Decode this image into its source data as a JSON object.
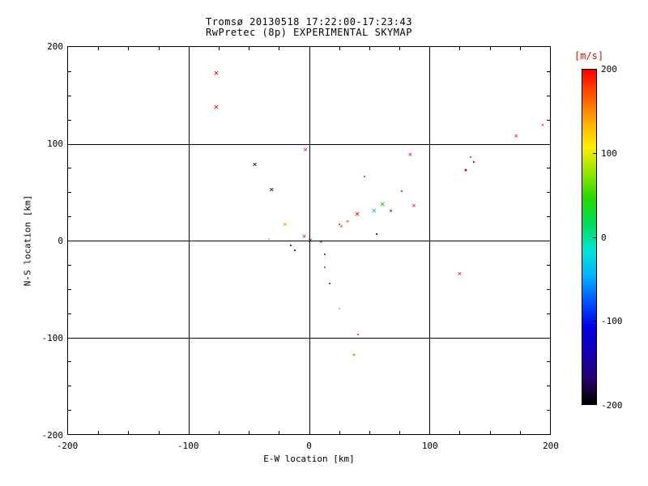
{
  "title": {
    "line1": "Tromsø 20130518 17:22:00-17:23:43",
    "line2": "RwPretec (8p) EXPERIMENTAL SKYMAP"
  },
  "axes": {
    "xlabel": "E-W location [km]",
    "ylabel": "N-S location [km]",
    "x_ticks": [
      "-200",
      "-100",
      "0",
      "100",
      "200"
    ],
    "y_ticks": [
      "200",
      "100",
      "0",
      "-100",
      "-200"
    ]
  },
  "colorbar": {
    "label": "[m/s]",
    "label_color": "#cc1100",
    "ticks": [
      "200",
      "100",
      "0",
      "-100",
      "-200"
    ],
    "min": -200,
    "max": 200,
    "gradient_stops": [
      "#000000",
      "#26006e",
      "#1500b4",
      "#0000e6",
      "#0055ff",
      "#00b4ff",
      "#00e6d2",
      "#00dc5a",
      "#28d800",
      "#96e600",
      "#ffee00",
      "#ffaa00",
      "#ff5500",
      "#ff0000"
    ]
  },
  "chart_data": {
    "type": "scatter",
    "title": "Tromsø 20130518 17:22:00-17:23:43 / RwPretec (8p) EXPERIMENTAL SKYMAP",
    "xlabel": "E-W location [km]",
    "ylabel": "N-S location [km]",
    "xlim": [
      -200,
      200
    ],
    "ylim": [
      -200,
      200
    ],
    "grid": true,
    "color_scale": {
      "label": "[m/s]",
      "min": -200,
      "max": 200,
      "type": "rainbow"
    },
    "points": [
      {
        "x": -77,
        "y": 173,
        "v": 190,
        "color": "#ff0000",
        "marker": "x",
        "size": 11
      },
      {
        "x": -77,
        "y": 138,
        "v": 190,
        "color": "#ff0000",
        "marker": "x",
        "size": 11
      },
      {
        "x": -45,
        "y": 78,
        "v": -190,
        "color": "#000000",
        "marker": "x",
        "size": 10
      },
      {
        "x": -31,
        "y": 52,
        "v": -190,
        "color": "#000000",
        "marker": "x",
        "size": 10
      },
      {
        "x": -3,
        "y": 93,
        "v": 190,
        "color": "#ff0000",
        "marker": "x",
        "size": 9
      },
      {
        "x": -20,
        "y": 16,
        "v": 150,
        "color": "#ff9900",
        "marker": "x",
        "size": 10
      },
      {
        "x": -33,
        "y": 2,
        "v": 150,
        "color": "#ff9900",
        "marker": "dot",
        "size": 2
      },
      {
        "x": -15,
        "y": -5,
        "v": -190,
        "color": "#000000",
        "marker": "dot",
        "size": 2
      },
      {
        "x": -4,
        "y": 3,
        "v": 190,
        "color": "#ff0000",
        "marker": "x",
        "size": 9
      },
      {
        "x": 1,
        "y": -1,
        "v": -190,
        "color": "#000000",
        "marker": "x",
        "size": 9
      },
      {
        "x": -12,
        "y": -10,
        "v": -190,
        "color": "#000000",
        "marker": "dot",
        "size": 2
      },
      {
        "x": 10,
        "y": -2,
        "v": -190,
        "color": "#000000",
        "marker": "x",
        "size": 7
      },
      {
        "x": 13,
        "y": -14,
        "v": -130,
        "color": "#1a1a8c",
        "marker": "dot",
        "size": 2
      },
      {
        "x": 27,
        "y": 14,
        "v": 190,
        "color": "#ff0000",
        "marker": "x",
        "size": 7
      },
      {
        "x": 32,
        "y": 19,
        "v": 190,
        "color": "#ff0000",
        "marker": "x",
        "size": 7
      },
      {
        "x": 40,
        "y": 28,
        "v": 190,
        "color": "#ff0000",
        "marker": "x",
        "size": 11
      },
      {
        "x": 46,
        "y": 66,
        "v": 190,
        "color": "#ff0000",
        "marker": "dot",
        "size": 2
      },
      {
        "x": 54,
        "y": 31,
        "v": 10,
        "color": "#00ccbb",
        "marker": "x",
        "size": 11
      },
      {
        "x": 61,
        "y": 38,
        "v": 70,
        "color": "#00cc00",
        "marker": "x",
        "size": 11
      },
      {
        "x": 68,
        "y": 30,
        "v": -190,
        "color": "#000000",
        "marker": "x",
        "size": 7
      },
      {
        "x": 77,
        "y": 51,
        "v": 190,
        "color": "#ff0000",
        "marker": "dot",
        "size": 2
      },
      {
        "x": 84,
        "y": 88,
        "v": 190,
        "color": "#ff0000",
        "marker": "x",
        "size": 9
      },
      {
        "x": 87,
        "y": 35,
        "v": 190,
        "color": "#ff0000",
        "marker": "x",
        "size": 9
      },
      {
        "x": 56,
        "y": 7,
        "v": -190,
        "color": "#000000",
        "marker": "dot",
        "size": 2
      },
      {
        "x": 25,
        "y": 17,
        "v": 190,
        "color": "#ff0000",
        "marker": "dot",
        "size": 2
      },
      {
        "x": 13,
        "y": -28,
        "v": 190,
        "color": "#ff0000",
        "marker": "dot",
        "size": 2
      },
      {
        "x": 17,
        "y": -44,
        "v": -130,
        "color": "#1a1a8c",
        "marker": "dot",
        "size": 2
      },
      {
        "x": 25,
        "y": -70,
        "v": 150,
        "color": "#ff9900",
        "marker": "dot",
        "size": 2
      },
      {
        "x": 41,
        "y": -97,
        "v": 190,
        "color": "#ff0000",
        "marker": "dot",
        "size": 2
      },
      {
        "x": 37,
        "y": -118,
        "v": 150,
        "color": "#ff9900",
        "marker": "dot",
        "size": 3
      },
      {
        "x": 125,
        "y": -35,
        "v": 190,
        "color": "#ff0000",
        "marker": "x",
        "size": 9
      },
      {
        "x": 130,
        "y": 73,
        "v": 170,
        "color": "#aa2200",
        "marker": "dot",
        "size": 3
      },
      {
        "x": 134,
        "y": 86,
        "v": 190,
        "color": "#ff0000",
        "marker": "dot",
        "size": 2
      },
      {
        "x": 137,
        "y": 81,
        "v": -190,
        "color": "#000000",
        "marker": "dot",
        "size": 2
      },
      {
        "x": 172,
        "y": 107,
        "v": 190,
        "color": "#ff0000",
        "marker": "x",
        "size": 9
      },
      {
        "x": 194,
        "y": 119,
        "v": 190,
        "color": "#ff0000",
        "marker": "x",
        "size": 7
      }
    ]
  }
}
